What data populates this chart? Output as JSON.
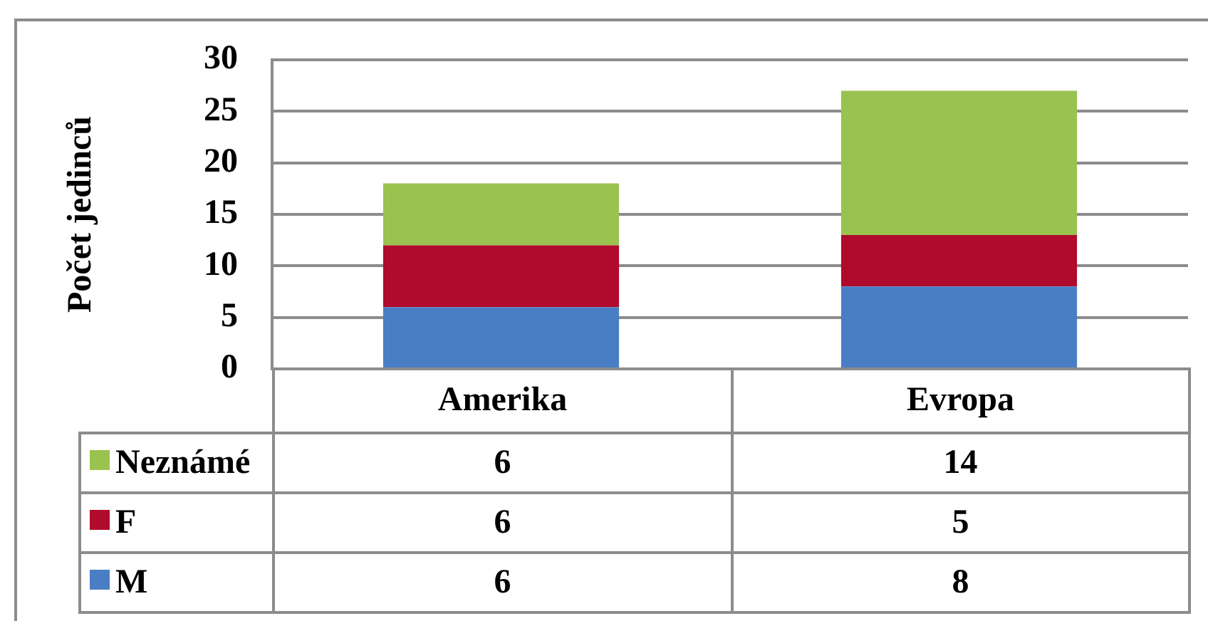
{
  "chart_data": {
    "type": "bar",
    "ylabel": "Počet jedinců",
    "categories": [
      "Amerika",
      "Evropa"
    ],
    "series": [
      {
        "name": "M",
        "color": "#4a7ec4",
        "values": [
          6,
          8
        ]
      },
      {
        "name": "F",
        "color": "#b00a2c",
        "values": [
          6,
          5
        ]
      },
      {
        "name": "Neznámé",
        "color": "#9ac24f",
        "values": [
          6,
          14
        ]
      }
    ],
    "stacked": true,
    "ylim": [
      0,
      30
    ],
    "yticks": [
      0,
      5,
      10,
      15,
      20,
      25,
      30
    ],
    "grid": "y",
    "legend": "bottom",
    "data_labels": true
  }
}
